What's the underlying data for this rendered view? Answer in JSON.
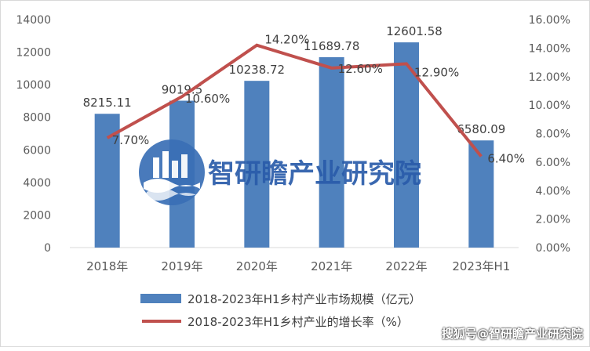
{
  "chart_data": {
    "type": "bar",
    "categories": [
      "2018年",
      "2019年",
      "2020年",
      "2021年",
      "2022年",
      "2023年H1"
    ],
    "series": [
      {
        "name": "2018-2023年H1乡村产业市场规模（亿元）",
        "type": "bar",
        "axis": "left",
        "values": [
          8215.11,
          9019.5,
          10238.72,
          11689.78,
          12601.58,
          6580.09
        ],
        "labels": [
          "8215.11",
          "9019.5",
          "10238.72",
          "11689.78",
          "12601.58",
          "6580.09"
        ]
      },
      {
        "name": "2018-2023年H1乡村产业的增长率（%）",
        "type": "line",
        "axis": "right",
        "values": [
          7.7,
          10.6,
          14.2,
          12.6,
          12.9,
          6.4
        ],
        "labels": [
          "7.70%",
          "10.60%",
          "14.20%",
          "12.60%",
          "12.90%",
          "6.40%"
        ]
      }
    ],
    "left_axis": {
      "ylim": [
        0,
        14000
      ],
      "ticks": [
        0,
        2000,
        4000,
        6000,
        8000,
        10000,
        12000,
        14000
      ],
      "tick_labels": [
        "0",
        "2000",
        "4000",
        "6000",
        "8000",
        "10000",
        "12000",
        "14000"
      ]
    },
    "right_axis": {
      "ylim": [
        0,
        16
      ],
      "ticks": [
        0,
        2,
        4,
        6,
        8,
        10,
        12,
        14,
        16
      ],
      "tick_labels": [
        "0.00%",
        "2.00%",
        "4.00%",
        "6.00%",
        "8.00%",
        "10.00%",
        "12.00%",
        "14.00%",
        "16.00%"
      ]
    },
    "grid": false,
    "legend_position": "bottom"
  },
  "colors": {
    "bar": "#4f81bd",
    "line": "#c0504d",
    "text": "#595959",
    "axis": "#d9d9d9"
  },
  "watermark": {
    "center_text": "智研瞻产业研究院",
    "bottom_text": "搜狐号@智研瞻产业研究院"
  }
}
